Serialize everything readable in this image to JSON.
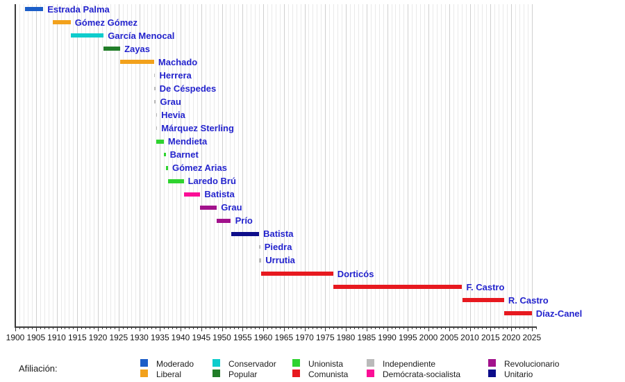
{
  "chart_data": {
    "type": "bar",
    "variant": "gantt-timeline",
    "title": "",
    "x_axis": {
      "min": 1900,
      "max": 2025,
      "minor_tick_step": 1,
      "major_tick_step": 5,
      "tick_labels": [
        "1900",
        "1905",
        "1910",
        "1915",
        "1920",
        "1925",
        "1930",
        "1935",
        "1940",
        "1945",
        "1950",
        "1955",
        "1960",
        "1965",
        "1970",
        "1975",
        "1980",
        "1985",
        "1990",
        "1995",
        "2000",
        "2005",
        "2010",
        "2015",
        "2020",
        "2025"
      ]
    },
    "grid": {
      "minor": true,
      "major": true,
      "orientation": "vertical"
    },
    "legend_position": "bottom",
    "bar_label_color": "#2323cd",
    "parties": {
      "Moderado": "#1c5ec8",
      "Liberal": "#f2a11c",
      "Conservador": "#0ecccc",
      "Popular": "#217d28",
      "Unionista": "#2fd330",
      "Comunista": "#e7191f",
      "Independiente": "#bababa",
      "Demócrata-socialista": "#fb0e96",
      "Revolucionario": "#a2128c",
      "Unitario": "#0d0d8a"
    },
    "bars": [
      {
        "name": "Estrada Palma",
        "party": "Moderado",
        "start": 1902.4,
        "end": 1906.75
      },
      {
        "name": "Gómez Gómez",
        "party": "Liberal",
        "start": 1909.05,
        "end": 1913.4
      },
      {
        "name": "García Menocal",
        "party": "Conservador",
        "start": 1913.4,
        "end": 1921.4
      },
      {
        "name": "Zayas",
        "party": "Popular",
        "start": 1921.4,
        "end": 1925.4
      },
      {
        "name": "Machado",
        "party": "Liberal",
        "start": 1925.4,
        "end": 1933.6
      },
      {
        "name": "Herrera",
        "party": "Independiente",
        "start": 1933.6,
        "end": 1933.63
      },
      {
        "name": "De Céspedes",
        "party": "Independiente",
        "start": 1933.61,
        "end": 1933.68
      },
      {
        "name": "Grau",
        "party": "Independiente",
        "start": 1933.68,
        "end": 1934.04
      },
      {
        "name": "Hevia",
        "party": "Independiente",
        "start": 1934.04,
        "end": 1934.06
      },
      {
        "name": "Márquez Sterling",
        "party": "Independiente",
        "start": 1934.05,
        "end": 1934.07
      },
      {
        "name": "Mendieta",
        "party": "Unionista",
        "start": 1934.05,
        "end": 1935.95
      },
      {
        "name": "Barnet",
        "party": "Unionista",
        "start": 1935.95,
        "end": 1936.4
      },
      {
        "name": "Gómez Arias",
        "party": "Unionista",
        "start": 1936.4,
        "end": 1936.98
      },
      {
        "name": "Laredo Brú",
        "party": "Unionista",
        "start": 1936.98,
        "end": 1940.78
      },
      {
        "name": "Batista",
        "party": "Demócrata-socialista",
        "start": 1940.78,
        "end": 1944.78
      },
      {
        "name": "Grau",
        "party": "Revolucionario",
        "start": 1944.78,
        "end": 1948.78
      },
      {
        "name": "Prío",
        "party": "Revolucionario",
        "start": 1948.78,
        "end": 1952.2
      },
      {
        "name": "Batista",
        "party": "Unitario",
        "start": 1952.2,
        "end": 1959.0
      },
      {
        "name": "Piedra",
        "party": "Independiente",
        "start": 1959.0,
        "end": 1959.02
      },
      {
        "name": "Urrutia",
        "party": "Independiente",
        "start": 1959.01,
        "end": 1959.54
      },
      {
        "name": "Dorticós",
        "party": "Comunista",
        "start": 1959.54,
        "end": 1976.92
      },
      {
        "name": "F. Castro",
        "party": "Comunista",
        "start": 1976.92,
        "end": 2008.15
      },
      {
        "name": "R. Castro",
        "party": "Comunista",
        "start": 2008.15,
        "end": 2018.3
      },
      {
        "name": "Díaz-Canel",
        "party": "Comunista",
        "start": 2018.3,
        "end": 2025.0
      }
    ]
  },
  "legend": {
    "label": "Afiliación:",
    "items": [
      {
        "label": "Moderado",
        "color": "#1c5ec8"
      },
      {
        "label": "Liberal",
        "color": "#f2a11c"
      },
      {
        "label": "Conservador",
        "color": "#0ecccc"
      },
      {
        "label": "Popular",
        "color": "#217d28"
      },
      {
        "label": "Unionista",
        "color": "#2fd330"
      },
      {
        "label": "Comunista",
        "color": "#e7191f"
      },
      {
        "label": "Independiente",
        "color": "#bababa"
      },
      {
        "label": "Demócrata-socialista",
        "color": "#fb0e96"
      },
      {
        "label": "Revolucionario",
        "color": "#a2128c"
      },
      {
        "label": "Unitario",
        "color": "#0d0d8a"
      }
    ]
  }
}
